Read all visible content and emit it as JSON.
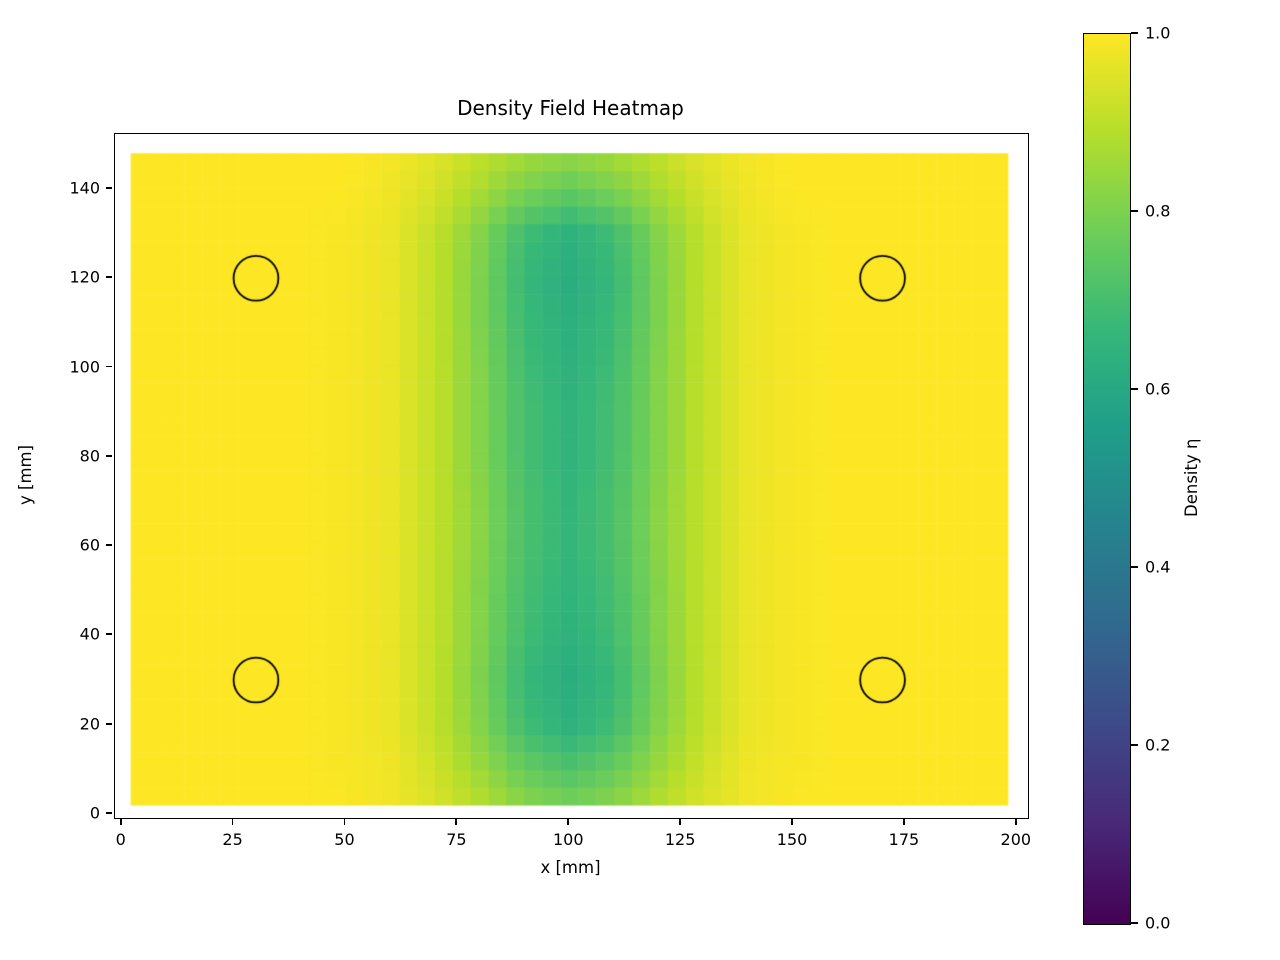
{
  "title": "Density Field Heatmap",
  "axes": {
    "xlabel": "x [mm]",
    "ylabel": "y [mm]",
    "x_ticks": [
      0,
      25,
      50,
      75,
      100,
      125,
      150,
      175,
      200
    ],
    "y_ticks": [
      0,
      20,
      40,
      60,
      80,
      100,
      120,
      140
    ]
  },
  "colorbar": {
    "label": "Density η",
    "ticks": [
      {
        "value": 1.0,
        "label": "1.0"
      },
      {
        "value": 0.8,
        "label": "0.8"
      },
      {
        "value": 0.6,
        "label": "0.6"
      },
      {
        "value": 0.4,
        "label": "0.4"
      },
      {
        "value": 0.2,
        "label": "0.2"
      },
      {
        "value": 0.0,
        "label": "0.0"
      }
    ],
    "vmin": 0.0,
    "vmax": 1.0
  },
  "chart_data": {
    "type": "heatmap",
    "title": "Density Field Heatmap",
    "xlabel": "x [mm]",
    "ylabel": "y [mm]",
    "colormap": "viridis",
    "vmin": 0.0,
    "vmax": 1.0,
    "xlim": [
      -1.5,
      202.5
    ],
    "ylim": [
      -0.9,
      152.3
    ],
    "extent": {
      "x": [
        2,
        198
      ],
      "y": [
        2,
        148
      ]
    },
    "cell_size_mm": 4,
    "x": [
      0,
      10,
      20,
      30,
      40,
      50,
      60,
      70,
      80,
      90,
      100,
      110,
      120,
      130,
      140,
      150,
      160,
      170,
      180,
      190,
      200
    ],
    "y": [
      0,
      10,
      20,
      30,
      40,
      50,
      60,
      70,
      80,
      90,
      100,
      110,
      120,
      130,
      140,
      150
    ],
    "values": [
      [
        1.0,
        1.0,
        1.0,
        1.0,
        1.0,
        1.0,
        0.98,
        0.95,
        0.9,
        0.84,
        0.81,
        0.84,
        0.9,
        0.95,
        0.98,
        1.0,
        1.0,
        1.0,
        1.0,
        1.0,
        1.0
      ],
      [
        1.0,
        1.0,
        1.0,
        1.0,
        1.0,
        0.99,
        0.98,
        0.93,
        0.85,
        0.76,
        0.72,
        0.76,
        0.85,
        0.93,
        0.98,
        0.99,
        1.0,
        1.0,
        1.0,
        1.0,
        1.0
      ],
      [
        1.0,
        1.0,
        1.0,
        1.0,
        1.0,
        0.99,
        0.97,
        0.91,
        0.81,
        0.69,
        0.64,
        0.69,
        0.81,
        0.91,
        0.97,
        0.99,
        1.0,
        1.0,
        1.0,
        1.0,
        1.0
      ],
      [
        1.0,
        1.0,
        1.0,
        1.0,
        1.0,
        0.99,
        0.97,
        0.91,
        0.8,
        0.67,
        0.62,
        0.67,
        0.8,
        0.91,
        0.97,
        0.99,
        1.0,
        1.0,
        1.0,
        1.0,
        1.0
      ],
      [
        1.0,
        1.0,
        1.0,
        1.0,
        1.0,
        0.99,
        0.97,
        0.91,
        0.81,
        0.69,
        0.64,
        0.69,
        0.81,
        0.91,
        0.97,
        0.99,
        1.0,
        1.0,
        1.0,
        1.0,
        1.0
      ],
      [
        1.0,
        1.0,
        1.0,
        1.0,
        1.0,
        0.99,
        0.97,
        0.91,
        0.81,
        0.7,
        0.65,
        0.7,
        0.81,
        0.91,
        0.97,
        0.99,
        1.0,
        1.0,
        1.0,
        1.0,
        1.0
      ],
      [
        1.0,
        1.0,
        1.0,
        1.0,
        1.0,
        0.99,
        0.97,
        0.91,
        0.82,
        0.71,
        0.66,
        0.71,
        0.82,
        0.91,
        0.97,
        0.99,
        1.0,
        1.0,
        1.0,
        1.0,
        1.0
      ],
      [
        1.0,
        1.0,
        1.0,
        1.0,
        1.0,
        0.99,
        0.97,
        0.91,
        0.82,
        0.71,
        0.66,
        0.71,
        0.82,
        0.91,
        0.97,
        0.99,
        1.0,
        1.0,
        1.0,
        1.0,
        1.0
      ],
      [
        1.0,
        1.0,
        1.0,
        1.0,
        1.0,
        0.99,
        0.97,
        0.91,
        0.81,
        0.7,
        0.65,
        0.7,
        0.81,
        0.91,
        0.97,
        0.99,
        1.0,
        1.0,
        1.0,
        1.0,
        1.0
      ],
      [
        1.0,
        1.0,
        1.0,
        1.0,
        1.0,
        0.99,
        0.97,
        0.91,
        0.81,
        0.7,
        0.65,
        0.7,
        0.81,
        0.91,
        0.97,
        0.99,
        1.0,
        1.0,
        1.0,
        1.0,
        1.0
      ],
      [
        1.0,
        1.0,
        1.0,
        1.0,
        1.0,
        0.99,
        0.97,
        0.91,
        0.81,
        0.69,
        0.64,
        0.69,
        0.81,
        0.91,
        0.97,
        0.99,
        1.0,
        1.0,
        1.0,
        1.0,
        1.0
      ],
      [
        1.0,
        1.0,
        1.0,
        1.0,
        1.0,
        0.99,
        0.97,
        0.91,
        0.8,
        0.68,
        0.63,
        0.68,
        0.8,
        0.91,
        0.97,
        0.99,
        1.0,
        1.0,
        1.0,
        1.0,
        1.0
      ],
      [
        1.0,
        1.0,
        1.0,
        1.0,
        1.0,
        0.99,
        0.97,
        0.91,
        0.8,
        0.67,
        0.62,
        0.67,
        0.8,
        0.91,
        0.97,
        0.99,
        1.0,
        1.0,
        1.0,
        1.0,
        1.0
      ],
      [
        1.0,
        1.0,
        1.0,
        1.0,
        1.0,
        0.99,
        0.97,
        0.91,
        0.81,
        0.69,
        0.64,
        0.69,
        0.81,
        0.91,
        0.97,
        0.99,
        1.0,
        1.0,
        1.0,
        1.0,
        1.0
      ],
      [
        1.0,
        1.0,
        1.0,
        1.0,
        1.0,
        1.0,
        0.98,
        0.94,
        0.87,
        0.8,
        0.76,
        0.8,
        0.87,
        0.94,
        0.98,
        1.0,
        1.0,
        1.0,
        1.0,
        1.0,
        1.0
      ],
      [
        1.0,
        1.0,
        1.0,
        1.0,
        1.0,
        1.0,
        0.99,
        0.96,
        0.92,
        0.88,
        0.86,
        0.88,
        0.92,
        0.96,
        0.99,
        1.0,
        1.0,
        1.0,
        1.0,
        1.0,
        1.0
      ]
    ],
    "holes": [
      {
        "x": 30,
        "y": 30,
        "r": 5
      },
      {
        "x": 170,
        "y": 30,
        "r": 5
      },
      {
        "x": 30,
        "y": 120,
        "r": 5
      },
      {
        "x": 170,
        "y": 120,
        "r": 5
      }
    ],
    "hole_outline_color": "#000000",
    "viridis_stops": [
      "#440154",
      "#482878",
      "#3e4989",
      "#31688e",
      "#26828e",
      "#1f9e89",
      "#35b779",
      "#6ece58",
      "#b5de2b",
      "#fde725"
    ]
  }
}
